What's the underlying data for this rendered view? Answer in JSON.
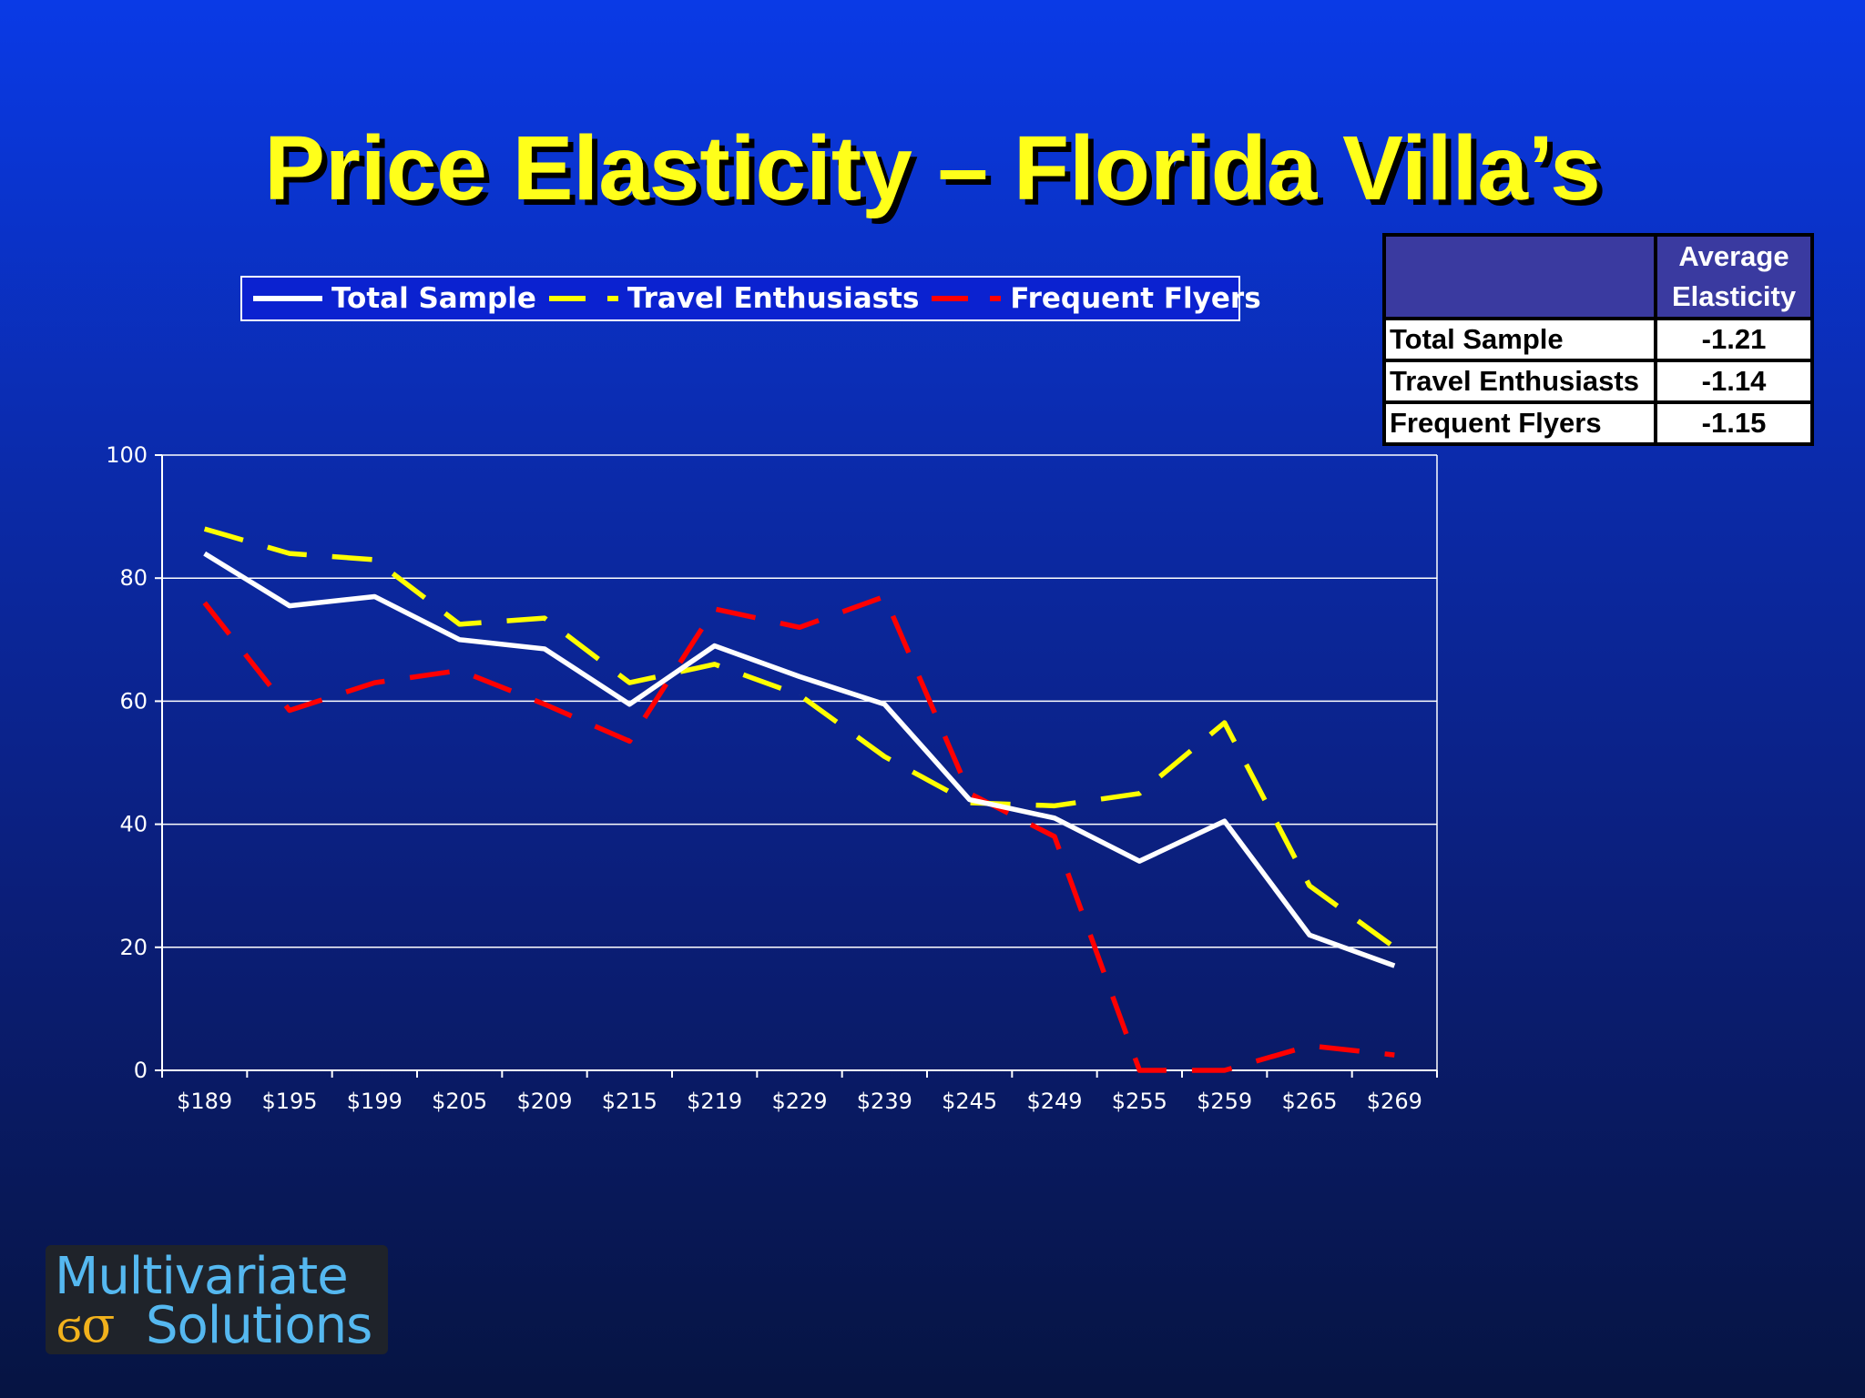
{
  "slide": {
    "title": "Price Elasticity – Florida Villa’s"
  },
  "legend": {
    "items": [
      {
        "label": "Total Sample",
        "color": "#ffffff",
        "style": "solid"
      },
      {
        "label": "Travel Enthusiasts",
        "color": "#ffff00",
        "style": "dashed"
      },
      {
        "label": "Frequent Flyers",
        "color": "#ff0000",
        "style": "dashed"
      }
    ]
  },
  "elasticity_table": {
    "header_line1": "Average",
    "header_line2": "Elasticity",
    "rows": [
      {
        "label": "Total Sample",
        "value": "-1.21"
      },
      {
        "label": "Travel Enthusiasts",
        "value": "-1.14"
      },
      {
        "label": "Frequent Flyers",
        "value": "-1.15"
      }
    ]
  },
  "logo": {
    "line1": "Multivariate",
    "symbol": "ϭσ",
    "line2": "Solutions"
  },
  "chart_data": {
    "type": "line",
    "categories": [
      "$189",
      "$195",
      "$199",
      "$205",
      "$209",
      "$215",
      "$219",
      "$229",
      "$239",
      "$245",
      "$249",
      "$255",
      "$259",
      "$265",
      "$269"
    ],
    "ylim": [
      0,
      100
    ],
    "yticks": [
      0,
      20,
      40,
      60,
      80,
      100
    ],
    "grid": true,
    "legend_position": "top",
    "series": [
      {
        "name": "Total Sample",
        "color": "#ffffff",
        "style": "solid",
        "values": [
          84,
          75.5,
          77,
          70,
          68.5,
          59.5,
          69,
          64,
          59.5,
          44,
          41,
          34,
          40.5,
          22,
          17
        ]
      },
      {
        "name": "Travel Enthusiasts",
        "color": "#ffff00",
        "style": "dashed",
        "values": [
          88,
          84,
          83,
          72.5,
          73.5,
          63,
          66,
          61,
          51,
          43.5,
          43,
          45,
          56.5,
          30,
          20
        ]
      },
      {
        "name": "Frequent Flyers",
        "color": "#ff0000",
        "style": "dashed",
        "values": [
          76,
          58.5,
          63,
          65,
          59.5,
          53.5,
          75,
          72,
          77,
          45,
          38,
          0,
          0,
          4,
          2.5
        ]
      }
    ]
  }
}
